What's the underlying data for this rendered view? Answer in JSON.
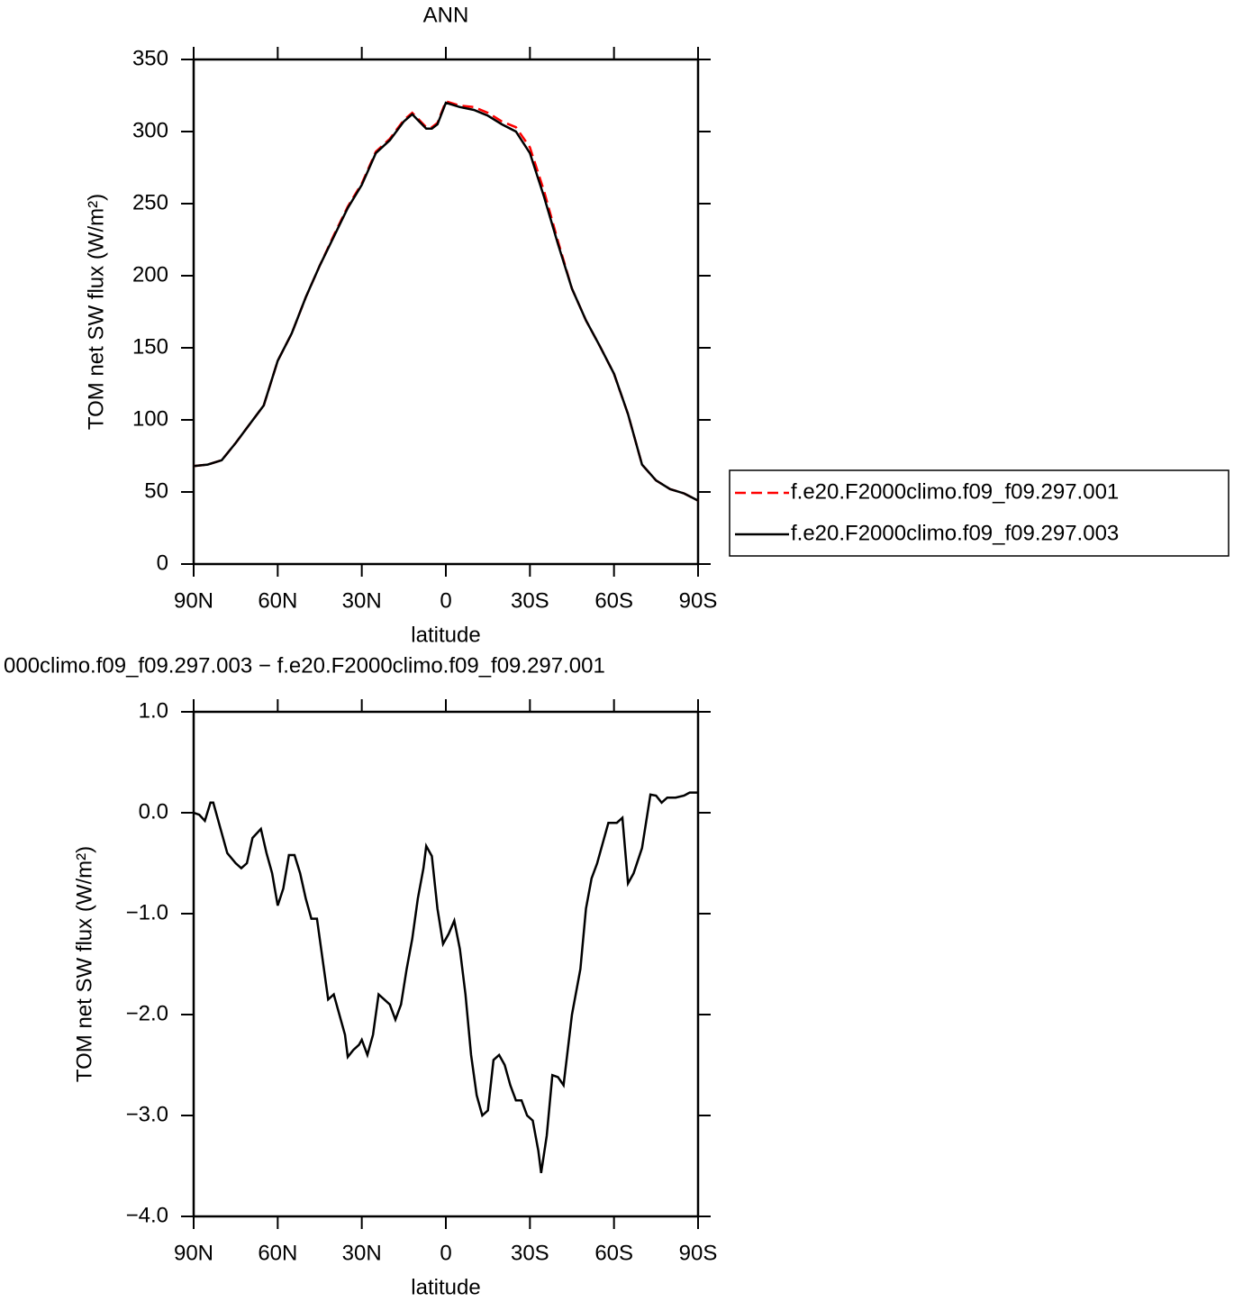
{
  "chart_data": [
    {
      "type": "line",
      "title": "ANN",
      "xlabel": "latitude",
      "ylabel": "TOM net SW flux (W/m²)",
      "x": [
        90,
        85,
        80,
        75,
        70,
        65,
        60,
        55,
        50,
        45,
        40,
        35,
        30,
        25,
        20,
        15,
        12,
        10,
        7,
        5,
        3,
        0,
        -5,
        -10,
        -15,
        -20,
        -25,
        -30,
        -35,
        -40,
        -45,
        -50,
        -55,
        -60,
        -65,
        -70,
        -75,
        -80,
        -85,
        -90
      ],
      "series": [
        {
          "name": "f.e20.F2000climo.f09_f09.297.001",
          "color": "#ff0000",
          "linestyle": "dashed",
          "values": [
            68,
            69,
            72,
            84,
            97,
            110,
            141,
            160,
            185,
            207,
            228,
            248,
            264,
            286,
            295,
            308,
            313,
            309,
            303,
            303,
            306,
            321,
            318,
            317,
            313,
            307,
            303,
            289,
            259,
            224,
            191,
            169,
            151,
            132,
            104,
            69,
            58,
            52,
            49,
            44
          ]
        },
        {
          "name": "f.e20.F2000climo.f09_f09.297.003",
          "color": "#000000",
          "linestyle": "solid",
          "values": [
            68,
            69,
            72,
            84,
            97,
            110,
            141,
            160,
            185,
            207,
            227,
            247,
            263,
            285,
            294,
            307,
            312,
            308,
            302,
            302,
            305,
            320,
            317,
            315,
            311,
            305,
            300,
            285,
            255,
            222,
            191,
            169,
            151,
            132,
            104,
            69,
            58,
            52,
            49,
            44
          ]
        }
      ],
      "xlim": [
        90,
        -90
      ],
      "xticks": [
        {
          "value": 90,
          "label": "90N"
        },
        {
          "value": 60,
          "label": "60N"
        },
        {
          "value": 30,
          "label": "30N"
        },
        0,
        {
          "value": -30,
          "label": "30S"
        },
        {
          "value": -60,
          "label": "60S"
        },
        {
          "value": -90,
          "label": "90S"
        }
      ],
      "ylim": [
        0,
        350
      ],
      "yticks": [
        0,
        50,
        100,
        150,
        200,
        250,
        300,
        350
      ],
      "legend": "right"
    },
    {
      "type": "line",
      "title": "000climo.f09_f09.297.003 − f.e20.F2000climo.f09_f09.297.001",
      "xlabel": "latitude",
      "ylabel": "TOM net SW flux (W/m²)",
      "x": [
        90,
        88,
        86,
        84,
        83,
        81,
        78,
        75,
        73,
        71,
        69,
        66,
        64,
        62,
        60,
        58,
        56,
        54,
        52,
        50,
        48,
        46,
        44,
        42,
        40,
        38,
        36,
        35,
        33,
        31,
        30,
        28,
        26,
        24,
        22,
        20,
        18,
        16,
        14,
        12,
        10,
        8,
        7,
        5,
        3,
        1,
        -1,
        -3,
        -5,
        -7,
        -9,
        -11,
        -13,
        -15,
        -17,
        -19,
        -21,
        -23,
        -25,
        -27,
        -29,
        -31,
        -33,
        -34,
        -36,
        -38,
        -40,
        -42,
        -45,
        -48,
        -50,
        -52,
        -54,
        -56,
        -58,
        -61,
        -63,
        -65,
        -67,
        -70,
        -73,
        -75,
        -77,
        -79,
        -82,
        -85,
        -87,
        -90
      ],
      "color": "#000000",
      "values": [
        0,
        -0.02,
        -0.08,
        0.1,
        0.1,
        -0.1,
        -0.4,
        -0.5,
        -0.55,
        -0.5,
        -0.25,
        -0.16,
        -0.4,
        -0.6,
        -0.92,
        -0.75,
        -0.42,
        -0.42,
        -0.6,
        -0.85,
        -1.05,
        -1.05,
        -1.45,
        -1.85,
        -1.8,
        -2.0,
        -2.2,
        -2.42,
        -2.35,
        -2.3,
        -2.25,
        -2.4,
        -2.2,
        -1.8,
        -1.85,
        -1.9,
        -2.05,
        -1.9,
        -1.55,
        -1.25,
        -0.85,
        -0.55,
        -0.33,
        -0.43,
        -0.95,
        -1.3,
        -1.2,
        -1.07,
        -1.35,
        -1.8,
        -2.4,
        -2.8,
        -3.0,
        -2.95,
        -2.45,
        -2.4,
        -2.5,
        -2.7,
        -2.85,
        -2.85,
        -3.0,
        -3.05,
        -3.35,
        -3.57,
        -3.2,
        -2.6,
        -2.62,
        -2.7,
        -2.0,
        -1.55,
        -0.95,
        -0.65,
        -0.5,
        -0.3,
        -0.1,
        -0.1,
        -0.05,
        -0.7,
        -0.6,
        -0.35,
        0.18,
        0.17,
        0.1,
        0.15,
        0.15,
        0.17,
        0.2,
        0.2
      ],
      "xlim": [
        90,
        -90
      ],
      "xticks": [
        {
          "value": 90,
          "label": "90N"
        },
        {
          "value": 60,
          "label": "60N"
        },
        {
          "value": 30,
          "label": "30N"
        },
        0,
        {
          "value": -30,
          "label": "30S"
        },
        {
          "value": -60,
          "label": "60S"
        },
        {
          "value": -90,
          "label": "90S"
        }
      ],
      "ylim": [
        -4,
        1
      ],
      "yticks": [
        {
          "value": 1,
          "label": "1.0"
        },
        {
          "value": 0,
          "label": "0.0"
        },
        {
          "value": -1,
          "label": "−1.0"
        },
        {
          "value": -2,
          "label": "−2.0"
        },
        {
          "value": -3,
          "label": "−3.0"
        },
        {
          "value": -4,
          "label": "−4.0"
        }
      ]
    }
  ]
}
